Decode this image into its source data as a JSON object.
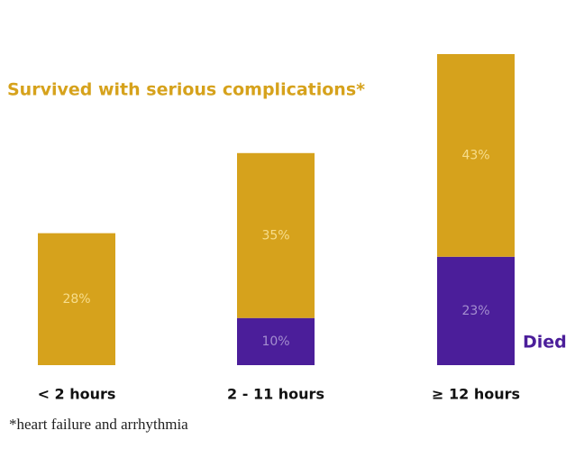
{
  "chart_data": {
    "type": "stacked-bar",
    "categories": [
      "< 2 hours",
      "2 - 11 hours",
      "≥ 12 hours"
    ],
    "series": [
      {
        "name": "Died",
        "color": "#4b1e9a",
        "values": [
          null,
          10,
          23
        ],
        "value_labels": [
          null,
          "10%",
          "23%"
        ]
      },
      {
        "name": "Survived with serious complications*",
        "color": "#d6a21c",
        "values": [
          28,
          35,
          43
        ],
        "value_labels": [
          "28%",
          "35%",
          "43%"
        ]
      }
    ],
    "ylim": [
      0,
      66
    ],
    "footnote": "*heart failure and arrhythmia"
  }
}
